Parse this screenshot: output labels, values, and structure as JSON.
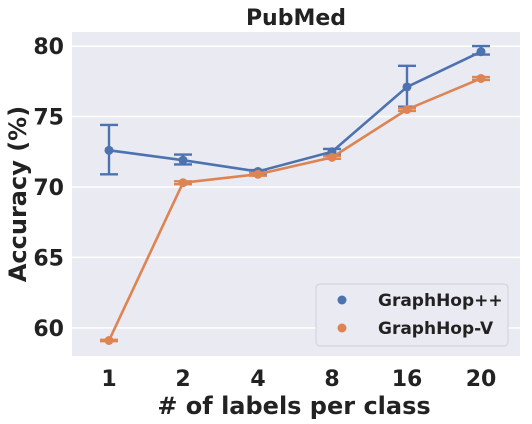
{
  "chart_data": {
    "type": "line",
    "title": "PubMed",
    "xlabel": "# of labels per class",
    "ylabel": "Accuracy (%)",
    "categories": [
      "1",
      "2",
      "4",
      "8",
      "16",
      "20"
    ],
    "ylim": [
      58,
      81
    ],
    "yticks": [
      60,
      65,
      70,
      75,
      80
    ],
    "grid": true,
    "legend_position": "bottom-right",
    "background_color": "#eaeaf2",
    "series": [
      {
        "name": "GraphHop++",
        "color": "#4c72b0",
        "values": [
          72.6,
          71.9,
          71.1,
          72.5,
          77.1,
          79.6
        ],
        "error_low": [
          70.9,
          71.6,
          70.9,
          72.3,
          75.7,
          79.4
        ],
        "error_high": [
          74.4,
          72.3,
          71.2,
          72.7,
          78.6,
          80.0
        ]
      },
      {
        "name": "GraphHop-V",
        "color": "#dd8452",
        "values": [
          59.1,
          70.3,
          70.9,
          72.1,
          75.5,
          77.7
        ],
        "error_low": [
          59.05,
          70.2,
          70.8,
          72.0,
          75.4,
          77.6
        ],
        "error_high": [
          59.15,
          70.4,
          71.0,
          72.2,
          75.6,
          77.8
        ]
      }
    ]
  }
}
